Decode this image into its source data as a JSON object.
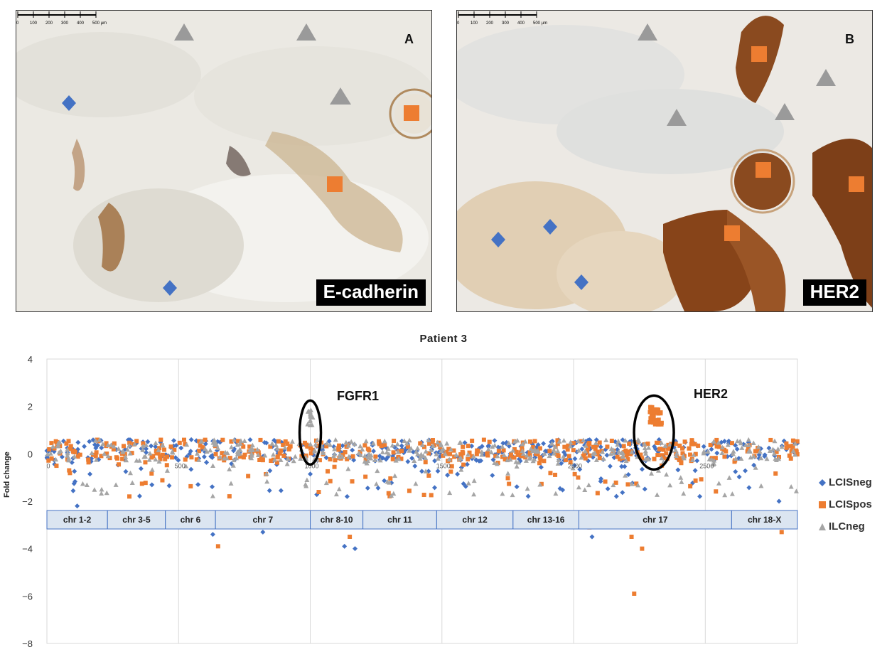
{
  "panels": [
    {
      "letter": "A",
      "stain": "E-cadherin"
    },
    {
      "letter": "B",
      "stain": "HER2"
    }
  ],
  "scale_bar": {
    "ticks": [
      "0",
      "100",
      "200",
      "300",
      "400",
      "500 µm"
    ]
  },
  "colors": {
    "LCISneg": "#4472c4",
    "LCISpos": "#ed7d31",
    "ILCneg": "#a5a5a5"
  },
  "chart_data": {
    "type": "scatter",
    "title": "Patient 3",
    "ylabel": "Fold change",
    "ylim": [
      -8,
      4
    ],
    "yticks": [
      "4",
      "2",
      "0",
      "−2",
      "−4",
      "−6",
      "−8"
    ],
    "xlim": [
      0,
      2850
    ],
    "xticks": [
      "0",
      "500",
      "1000",
      "1500",
      "2000",
      "2500"
    ],
    "xtick_values": [
      0,
      500,
      1000,
      1500,
      2000,
      2500
    ],
    "legend_position": "right",
    "series": [
      {
        "name": "LCISneg",
        "marker": "diamond"
      },
      {
        "name": "LCISpos",
        "marker": "square"
      },
      {
        "name": "ILCneg",
        "marker": "triangle"
      }
    ],
    "annotations": [
      {
        "text": "FGFR1",
        "x": 1000,
        "y": 1.5
      },
      {
        "text": "HER2",
        "x": 2290,
        "y": 1.6
      }
    ],
    "chromosome_bands": [
      {
        "label": "chr 1-2",
        "start": 0,
        "end": 230
      },
      {
        "label": "chr 3-5",
        "start": 230,
        "end": 450
      },
      {
        "label": "chr 6",
        "start": 450,
        "end": 640
      },
      {
        "label": "chr 7",
        "start": 640,
        "end": 1000
      },
      {
        "label": "chr 8-10",
        "start": 1000,
        "end": 1200
      },
      {
        "label": "chr 11",
        "start": 1200,
        "end": 1480
      },
      {
        "label": "chr 12",
        "start": 1480,
        "end": 1770
      },
      {
        "label": "chr 13-16",
        "start": 1770,
        "end": 2020
      },
      {
        "label": "chr 17",
        "start": 2020,
        "end": 2600
      },
      {
        "label": "chr 18-X",
        "start": 2600,
        "end": 2850
      }
    ]
  }
}
